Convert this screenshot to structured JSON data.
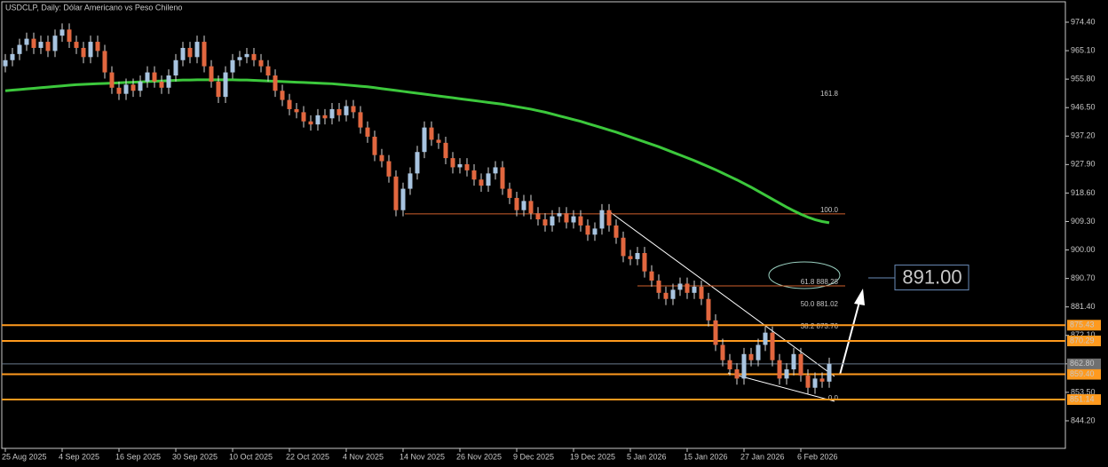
{
  "chart_data": {
    "type": "candlestick",
    "title": "USDCLP, Daily:  Dólar Americano vs Peso Chileno",
    "categories": [
      "25 Aug 2025",
      null,
      null,
      null,
      null,
      null,
      null,
      null,
      "4 Sep 2025",
      null,
      null,
      null,
      null,
      null,
      null,
      null,
      "16 Sep 2025",
      null,
      null,
      null,
      null,
      null,
      null,
      null,
      "30 Sep 2025",
      null,
      null,
      null,
      null,
      null,
      null,
      null,
      "10 Oct 2025",
      null,
      null,
      null,
      null,
      null,
      null,
      null,
      "22 Oct 2025",
      null,
      null,
      null,
      null,
      null,
      null,
      null,
      "4 Nov 2025",
      null,
      null,
      null,
      null,
      null,
      null,
      null,
      "14 Nov 2025",
      null,
      null,
      null,
      null,
      null,
      null,
      null,
      "26 Nov 2025",
      null,
      null,
      null,
      null,
      null,
      null,
      null,
      "9 Dec 2025",
      null,
      null,
      null,
      null,
      null,
      null,
      null,
      "19 Dec 2025",
      null,
      null,
      null,
      null,
      null,
      null,
      null,
      "5 Jan 2026",
      null,
      null,
      null,
      null,
      null,
      null,
      null,
      "15 Jan 2026",
      null,
      null,
      null,
      null,
      null,
      null,
      null,
      "27 Jan 2026",
      null,
      null,
      null,
      null,
      null,
      null,
      null,
      "6 Feb 2026",
      null,
      null,
      null,
      null
    ],
    "open": [
      960,
      962,
      964,
      967,
      969,
      966,
      968,
      965,
      970,
      972,
      968,
      966,
      963,
      968,
      965,
      958,
      953,
      951,
      954,
      952,
      955,
      958,
      955,
      953,
      957,
      962,
      966,
      963,
      968,
      960,
      955,
      950,
      958,
      962,
      963,
      964,
      962,
      960,
      957,
      952,
      949,
      946,
      945,
      942,
      941,
      944,
      943,
      946,
      944,
      947,
      945,
      940,
      937,
      931,
      929,
      924,
      913,
      920,
      925,
      932,
      940,
      936,
      935,
      930,
      927,
      928,
      926,
      923,
      921,
      925,
      927,
      920,
      917,
      913,
      916,
      912,
      910,
      908,
      911,
      912,
      909,
      911,
      908,
      905,
      907,
      913,
      908,
      904,
      898,
      897,
      899,
      893,
      890,
      886,
      884,
      887,
      889,
      886,
      888,
      884,
      877,
      869,
      864,
      861,
      858,
      866,
      864,
      869,
      873,
      864,
      858,
      861,
      866,
      859,
      855,
      858,
      857
    ],
    "high": [
      964,
      966,
      969,
      971,
      971,
      970,
      970,
      972,
      974,
      974,
      970,
      968,
      970,
      970,
      967,
      960,
      955,
      956,
      956,
      957,
      960,
      960,
      957,
      959,
      964,
      968,
      968,
      970,
      970,
      962,
      957,
      960,
      964,
      965,
      966,
      966,
      964,
      962,
      959,
      954,
      951,
      948,
      947,
      944,
      946,
      946,
      948,
      948,
      949,
      949,
      947,
      942,
      939,
      933,
      931,
      926,
      922,
      927,
      934,
      942,
      942,
      938,
      937,
      932,
      930,
      930,
      928,
      925,
      927,
      929,
      929,
      922,
      919,
      918,
      918,
      914,
      912,
      913,
      914,
      914,
      913,
      913,
      910,
      909,
      915,
      915,
      910,
      906,
      900,
      901,
      901,
      895,
      892,
      888,
      889,
      891,
      891,
      890,
      890,
      886,
      879,
      871,
      866,
      863,
      868,
      868,
      871,
      875,
      875,
      866,
      863,
      868,
      868,
      861,
      860,
      860,
      864.8
    ],
    "low": [
      958,
      960,
      962,
      965,
      964,
      964,
      963,
      963,
      968,
      966,
      964,
      961,
      961,
      963,
      956,
      951,
      949,
      949,
      950,
      950,
      953,
      953,
      951,
      951,
      955,
      960,
      961,
      961,
      958,
      953,
      948,
      948,
      956,
      960,
      961,
      960,
      958,
      955,
      950,
      947,
      944,
      943,
      940,
      939,
      939,
      941,
      941,
      942,
      942,
      943,
      938,
      935,
      929,
      927,
      922,
      911,
      911,
      918,
      923,
      930,
      934,
      933,
      928,
      925,
      925,
      924,
      921,
      919,
      919,
      923,
      918,
      915,
      911,
      911,
      910,
      908,
      906,
      906,
      909,
      907,
      907,
      906,
      903,
      903,
      905,
      906,
      902,
      896,
      895,
      895,
      891,
      888,
      884,
      882,
      882,
      885,
      884,
      884,
      882,
      875,
      867,
      862,
      859,
      856,
      856,
      862,
      862,
      867,
      862,
      856,
      856,
      859,
      857,
      853,
      853,
      855,
      855
    ],
    "close": [
      962,
      964,
      967,
      969,
      966,
      968,
      965,
      970,
      972,
      968,
      966,
      963,
      968,
      965,
      958,
      953,
      951,
      954,
      952,
      955,
      958,
      955,
      953,
      957,
      962,
      966,
      963,
      968,
      960,
      955,
      950,
      958,
      962,
      963,
      964,
      962,
      960,
      957,
      952,
      949,
      946,
      945,
      942,
      941,
      944,
      943,
      946,
      944,
      947,
      945,
      940,
      937,
      931,
      929,
      924,
      913,
      920,
      925,
      932,
      940,
      936,
      935,
      930,
      927,
      928,
      926,
      923,
      921,
      925,
      927,
      920,
      917,
      913,
      916,
      912,
      910,
      908,
      911,
      912,
      909,
      911,
      908,
      905,
      907,
      913,
      908,
      904,
      898,
      897,
      899,
      893,
      890,
      886,
      884,
      887,
      889,
      886,
      888,
      884,
      877,
      869,
      864,
      861,
      858,
      866,
      864,
      869,
      873,
      864,
      858,
      861,
      866,
      859,
      855,
      858,
      857,
      862.8
    ],
    "up_color": "#a8c4e0",
    "down_color": "#e2673f",
    "ma": {
      "color": "#3cc83c",
      "values": [
        952.0,
        952.2,
        952.4,
        952.6,
        952.8,
        953.0,
        953.2,
        953.4,
        953.6,
        953.8,
        954.0,
        954.1,
        954.2,
        954.3,
        954.4,
        954.5,
        954.6,
        954.7,
        954.8,
        954.9,
        955.0,
        955.1,
        955.2,
        955.3,
        955.4,
        955.5,
        955.5,
        955.6,
        955.6,
        955.6,
        955.6,
        955.6,
        955.6,
        955.5,
        955.5,
        955.4,
        955.3,
        955.2,
        955.1,
        955.0,
        954.9,
        954.8,
        954.7,
        954.6,
        954.5,
        954.4,
        954.3,
        954.1,
        953.9,
        953.7,
        953.5,
        953.3,
        953.0,
        952.7,
        952.4,
        952.1,
        951.8,
        951.5,
        951.2,
        950.9,
        950.6,
        950.3,
        950.0,
        949.7,
        949.4,
        949.1,
        948.8,
        948.5,
        948.2,
        947.9,
        947.6,
        947.2,
        946.8,
        946.4,
        946.0,
        945.5,
        945.0,
        944.4,
        943.8,
        943.2,
        942.6,
        942.0,
        941.3,
        940.6,
        939.9,
        939.2,
        938.5,
        937.7,
        936.9,
        936.1,
        935.3,
        934.5,
        933.7,
        932.8,
        931.9,
        931.0,
        930.1,
        929.2,
        928.2,
        927.2,
        926.2,
        925.1,
        924.0,
        922.9,
        921.7,
        920.5,
        919.2,
        917.9,
        916.6,
        915.3,
        914.0,
        912.8,
        911.7,
        910.7,
        909.9,
        909.3,
        908.9
      ]
    },
    "ylim": [
      835.2,
      981.65
    ],
    "yticks": [
      {
        "value": 974.4,
        "label": "974.40"
      },
      {
        "value": 965.1,
        "label": "965.10"
      },
      {
        "value": 955.8,
        "label": "955.80"
      },
      {
        "value": 946.5,
        "label": "946.50"
      },
      {
        "value": 937.2,
        "label": "937.20"
      },
      {
        "value": 927.9,
        "label": "927.90"
      },
      {
        "value": 918.6,
        "label": "918.60"
      },
      {
        "value": 909.3,
        "label": "909.30"
      },
      {
        "value": 900,
        "label": "900.00"
      },
      {
        "value": 890.7,
        "label": "890.70"
      },
      {
        "value": 881.4,
        "label": "881.40"
      },
      {
        "value": 872.1,
        "label": "872.10"
      },
      {
        "value": 862.8,
        "label": "862.80"
      },
      {
        "value": 853.5,
        "label": "853.50"
      },
      {
        "value": 844.2,
        "label": "844.20"
      }
    ],
    "levels": [
      875.43,
      870.29,
      {
        "value": 859.4,
        "label": "859.40"
      },
      851.14
    ],
    "level_color": "#ff9a1e",
    "current_price": {
      "value": 862.8,
      "label": "862.80"
    },
    "target": {
      "value": 891,
      "label": "891.00"
    },
    "fib": [
      {
        "label": "161.8",
        "value": 949.79
      },
      {
        "label": "100.0",
        "value": 911.79
      },
      {
        "label": "61.8  888.28",
        "value": 888.28
      },
      {
        "label": "50.0  881.02",
        "value": 881.02
      },
      {
        "label": "38.2  873.76",
        "value": 873.76
      },
      {
        "label": "0.0",
        "value": 850.26
      }
    ]
  }
}
